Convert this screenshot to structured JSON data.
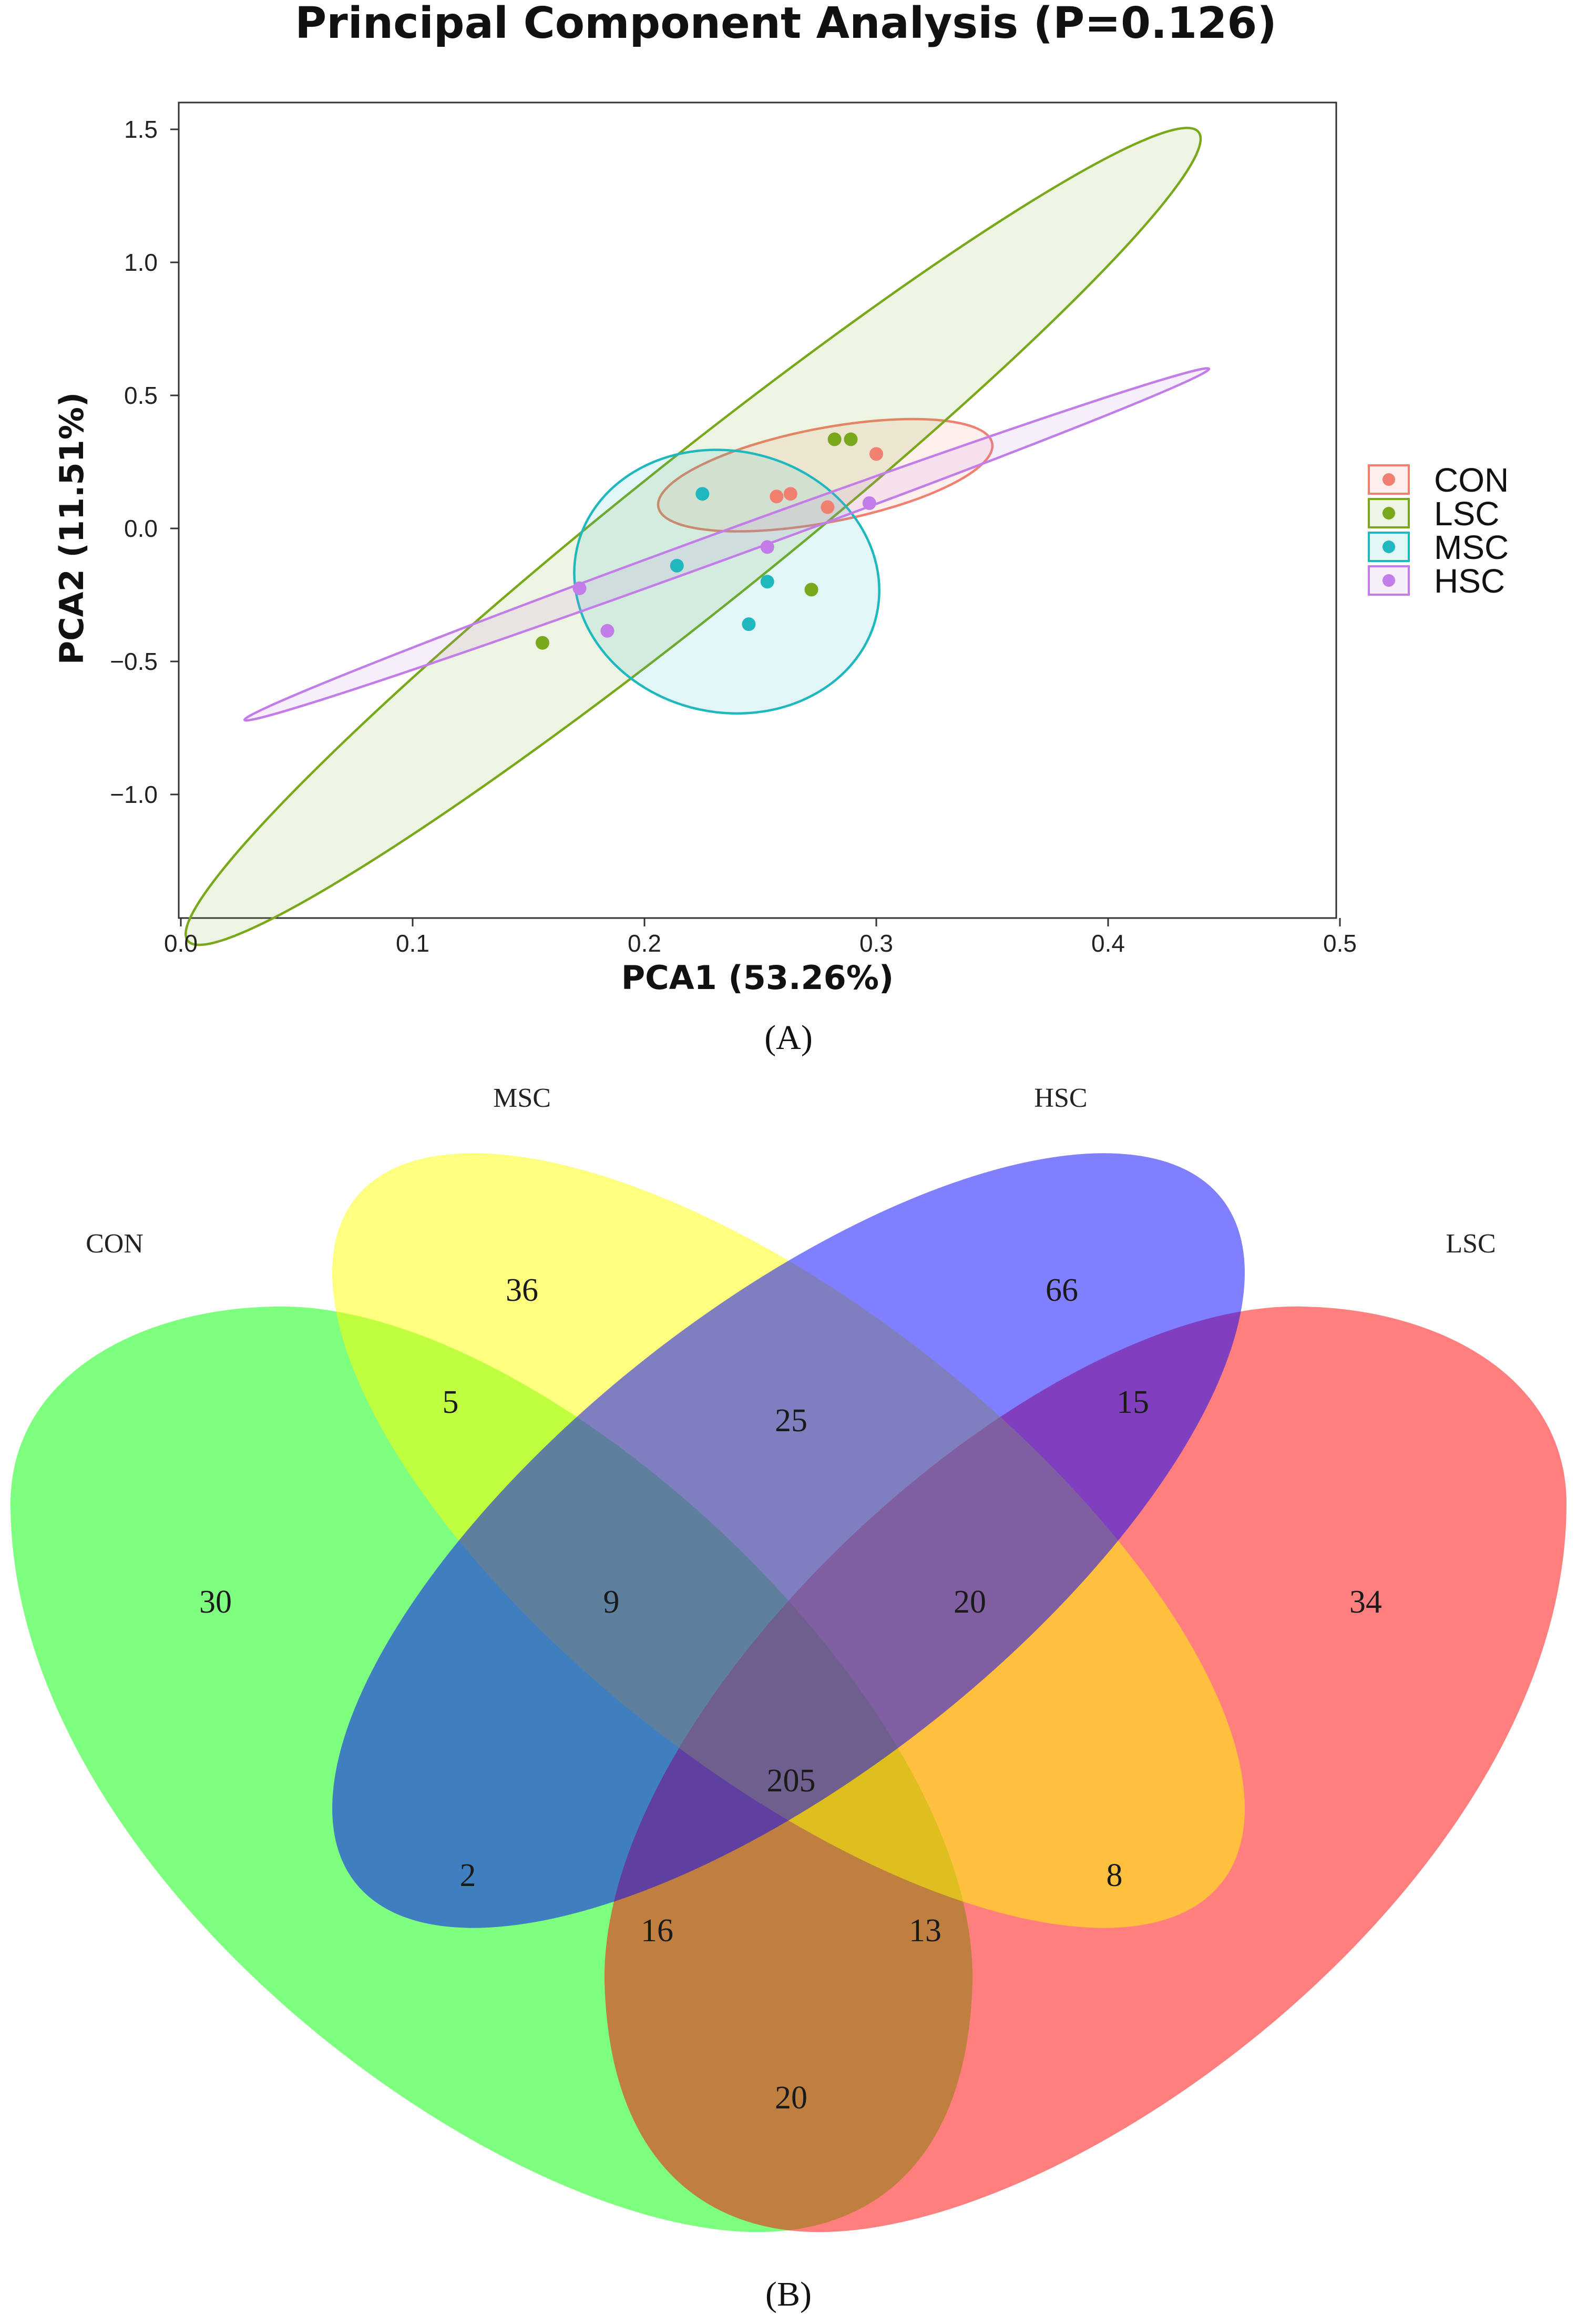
{
  "panel_a_label": "(A)",
  "panel_b_label": "(B)",
  "chart_data": [
    {
      "type": "scatter",
      "title": "Principal Component Analysis (P=0.126)",
      "xlabel": "PCA1 (53.26%)",
      "ylabel": "PCA2 (11.51%)",
      "xlim": [
        0.0,
        0.5
      ],
      "ylim": [
        -1.45,
        1.6
      ],
      "xticks": [
        0.0,
        0.1,
        0.2,
        0.3,
        0.4,
        0.5
      ],
      "xtick_labels": [
        "0.0",
        "0.1",
        "0.2",
        "0.3",
        "0.4",
        "0.5"
      ],
      "yticks": [
        1.5,
        1.0,
        0.5,
        0.0,
        -0.5,
        -1.0
      ],
      "ytick_labels": [
        "1.5",
        "1.0",
        "0.5",
        "0.0",
        "−0.5",
        "−1.0"
      ],
      "legend_position": "right",
      "series": [
        {
          "name": "CON",
          "color": "#F08070",
          "points": [
            [
              0.257,
              0.12
            ],
            [
              0.263,
              0.13
            ],
            [
              0.279,
              0.08
            ],
            [
              0.3,
              0.28
            ]
          ],
          "ellipse": {
            "center": [
              0.278,
              0.2
            ],
            "half_extent_x": [
              0.072,
              0.12
            ],
            "half_extent_y": [
              0.036,
              -0.12
            ],
            "flatness": 0.82
          }
        },
        {
          "name": "LSC",
          "color": "#7AA81C",
          "points": [
            [
              0.282,
              0.335
            ],
            [
              0.289,
              0.335
            ],
            [
              0.156,
              -0.43
            ],
            [
              0.272,
              -0.23
            ]
          ],
          "ellipse": {
            "center": [
              0.221,
              -0.03
            ],
            "half_extent_x": [
              0.218,
              1.52
            ],
            "half_extent_y": [
              0.137,
              1.31
            ],
            "flatness": 0.4
          }
        },
        {
          "name": "MSC",
          "color": "#1FB8BE",
          "points": [
            [
              0.225,
              0.13
            ],
            [
              0.214,
              -0.14
            ],
            [
              0.253,
              -0.2
            ],
            [
              0.245,
              -0.36
            ]
          ],
          "ellipse": {
            "center": [
              0.2355,
              -0.2
            ],
            "half_extent_x": [
              0.012,
              0.48
            ],
            "half_extent_y": [
              0.0675,
              -0.01
            ],
            "flatness": 0.97
          }
        },
        {
          "name": "HSC",
          "color": "#C27DE8",
          "points": [
            [
              0.172,
              -0.225
            ],
            [
              0.184,
              -0.385
            ],
            [
              0.253,
              -0.07
            ],
            [
              0.297,
              0.095
            ]
          ],
          "ellipse": {
            "center": [
              0.2355,
              -0.06
            ],
            "half_extent_x": [
              0.208,
              0.66
            ],
            "half_extent_y": [
              0.011,
              -0.02
            ],
            "flatness": 0.2
          }
        }
      ]
    },
    {
      "type": "venn",
      "sets": [
        {
          "name": "CON",
          "color": "#00FF00"
        },
        {
          "name": "MSC",
          "color": "#FFFF00"
        },
        {
          "name": "HSC",
          "color": "#0000FF"
        },
        {
          "name": "LSC",
          "color": "#FF0000"
        }
      ],
      "regions": [
        {
          "sets": [
            "CON"
          ],
          "count": 30
        },
        {
          "sets": [
            "MSC"
          ],
          "count": 36
        },
        {
          "sets": [
            "HSC"
          ],
          "count": 66
        },
        {
          "sets": [
            "LSC"
          ],
          "count": 34
        },
        {
          "sets": [
            "CON",
            "MSC"
          ],
          "count": 5
        },
        {
          "sets": [
            "MSC",
            "HSC"
          ],
          "count": 25
        },
        {
          "sets": [
            "HSC",
            "LSC"
          ],
          "count": 15
        },
        {
          "sets": [
            "CON",
            "MSC",
            "HSC"
          ],
          "count": 9
        },
        {
          "sets": [
            "MSC",
            "HSC",
            "LSC"
          ],
          "count": 20
        },
        {
          "sets": [
            "CON",
            "MSC",
            "HSC",
            "LSC"
          ],
          "count": 205
        },
        {
          "sets": [
            "CON",
            "HSC"
          ],
          "count": 2
        },
        {
          "sets": [
            "MSC",
            "LSC"
          ],
          "count": 8
        },
        {
          "sets": [
            "CON",
            "HSC",
            "LSC"
          ],
          "count": 16
        },
        {
          "sets": [
            "CON",
            "MSC",
            "LSC"
          ],
          "count": 13
        },
        {
          "sets": [
            "CON",
            "LSC"
          ],
          "count": 20
        }
      ]
    }
  ]
}
